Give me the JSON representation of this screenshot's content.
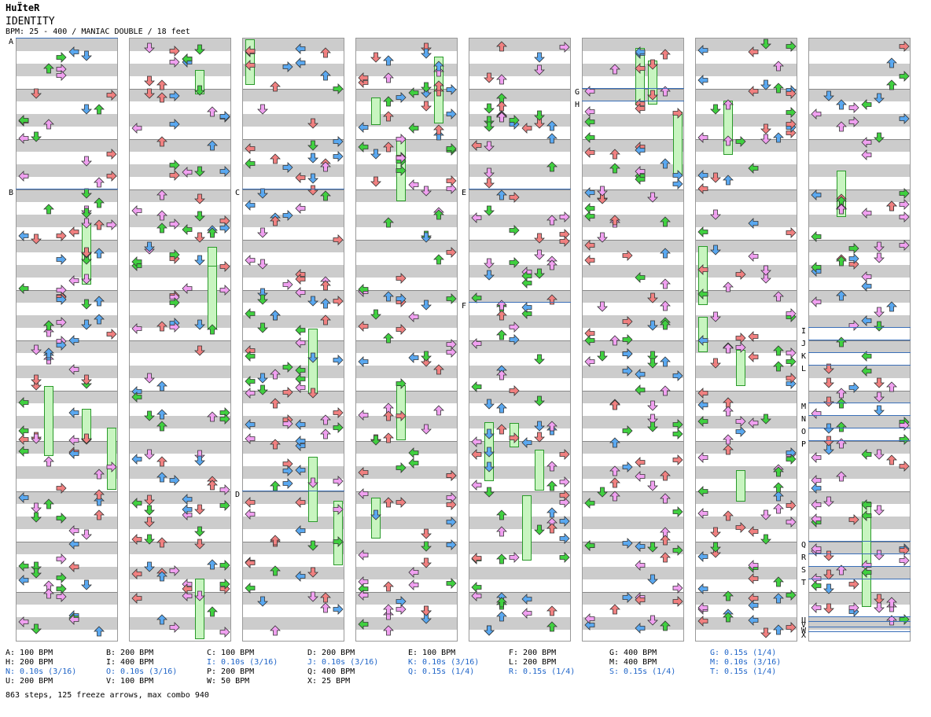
{
  "header": {
    "artist": "HuΪteR",
    "title": "IDENTITY",
    "info": "BPM: 25 - 400 / MANIAC DOUBLE / 18 feet"
  },
  "columns": 8,
  "markers": [
    {
      "label": "A",
      "col": 0,
      "row": 0
    },
    {
      "label": "B",
      "col": 0,
      "row": 12
    },
    {
      "label": "C",
      "col": 2,
      "row": 12
    },
    {
      "label": "D",
      "col": 2,
      "row": 36
    },
    {
      "label": "E",
      "col": 4,
      "row": 12
    },
    {
      "label": "F",
      "col": 4,
      "row": 21
    },
    {
      "label": "G",
      "col": 5,
      "row": 4
    },
    {
      "label": "H",
      "col": 5,
      "row": 5
    },
    {
      "label": "I",
      "col": 7,
      "row": 23
    },
    {
      "label": "J",
      "col": 7,
      "row": 24
    },
    {
      "label": "K",
      "col": 7,
      "row": 25
    },
    {
      "label": "L",
      "col": 7,
      "row": 26
    },
    {
      "label": "M",
      "col": 7,
      "row": 29
    },
    {
      "label": "N",
      "col": 7,
      "row": 30
    },
    {
      "label": "O",
      "col": 7,
      "row": 31
    },
    {
      "label": "P",
      "col": 7,
      "row": 32
    },
    {
      "label": "Q",
      "col": 7,
      "row": 40
    },
    {
      "label": "R",
      "col": 7,
      "row": 41
    },
    {
      "label": "S",
      "col": 7,
      "row": 42
    },
    {
      "label": "T",
      "col": 7,
      "row": 43
    },
    {
      "label": "U",
      "col": 7,
      "row": 46
    },
    {
      "label": "V",
      "col": 7,
      "row": 46.4
    },
    {
      "label": "W",
      "col": 7,
      "row": 46.8
    },
    {
      "label": "X",
      "col": 7,
      "row": 47.2
    }
  ],
  "legend": [
    [
      {
        "t": "A: 100 BPM",
        "c": "k"
      },
      {
        "t": "H: 200 BPM",
        "c": "k"
      },
      {
        "t": "N: 0.10s (3/16)",
        "c": "b"
      },
      {
        "t": "U: 200 BPM",
        "c": "k"
      }
    ],
    [
      {
        "t": "B: 200 BPM",
        "c": "k"
      },
      {
        "t": "I: 400 BPM",
        "c": "k"
      },
      {
        "t": "O: 0.10s (3/16)",
        "c": "b"
      },
      {
        "t": "V: 100 BPM",
        "c": "k"
      }
    ],
    [
      {
        "t": "C: 100 BPM",
        "c": "k"
      },
      {
        "t": "I: 0.10s (3/16)",
        "c": "b"
      },
      {
        "t": "P: 200 BPM",
        "c": "k"
      },
      {
        "t": "W: 50 BPM",
        "c": "k"
      }
    ],
    [
      {
        "t": "D: 200 BPM",
        "c": "k"
      },
      {
        "t": "J: 0.10s (3/16)",
        "c": "b"
      },
      {
        "t": "Q: 400 BPM",
        "c": "k"
      },
      {
        "t": "X: 25 BPM",
        "c": "k"
      }
    ],
    [
      {
        "t": "E: 100 BPM",
        "c": "k"
      },
      {
        "t": "K: 0.10s (3/16)",
        "c": "b"
      },
      {
        "t": "Q: 0.15s (1/4)",
        "c": "b"
      }
    ],
    [
      {
        "t": "F: 200 BPM",
        "c": "k"
      },
      {
        "t": "L: 200 BPM",
        "c": "k"
      },
      {
        "t": "R: 0.15s (1/4)",
        "c": "b"
      }
    ],
    [
      {
        "t": "G: 400 BPM",
        "c": "k"
      },
      {
        "t": "M: 400 BPM",
        "c": "k"
      },
      {
        "t": "S: 0.15s (1/4)",
        "c": "b"
      }
    ],
    [
      {
        "t": "G: 0.15s (1/4)",
        "c": "b"
      },
      {
        "t": "M: 0.10s (3/16)",
        "c": "b"
      },
      {
        "t": "T: 0.15s (1/4)",
        "c": "b"
      }
    ]
  ],
  "footer": "863 steps, 125 freeze arrows, max combo 940",
  "colors": {
    "red": "#f08080",
    "green": "#40d040",
    "blue": "#5aa8f0",
    "pink": "#f0a0f0",
    "freeze": "#c8f5c0",
    "bpm_line": "#3a6fb8"
  }
}
